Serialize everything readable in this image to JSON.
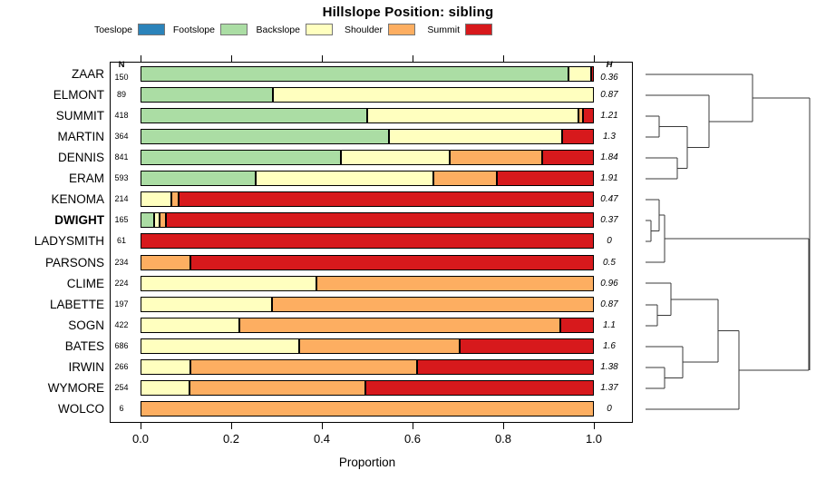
{
  "title": "Hillslope Position: sibling",
  "legend": {
    "items": [
      {
        "label": "Toeslope",
        "color": "#2B83BA"
      },
      {
        "label": "Footslope",
        "color": "#ABDDA4"
      },
      {
        "label": "Backslope",
        "color": "#FFFFBF"
      },
      {
        "label": "Shoulder",
        "color": "#FDAE61"
      },
      {
        "label": "Summit",
        "color": "#D7191C"
      }
    ]
  },
  "columns": {
    "n_header": "N",
    "h_header": "H"
  },
  "chart_data": {
    "type": "bar",
    "stacked": true,
    "orientation": "horizontal",
    "title": "Hillslope Position: sibling",
    "xlabel": "Proportion",
    "xlim": [
      0,
      1
    ],
    "x_ticks": [
      "0.0",
      "0.2",
      "0.4",
      "0.6",
      "0.8",
      "1.0"
    ],
    "x_tick_values": [
      0.0,
      0.2,
      0.4,
      0.6,
      0.8,
      1.0
    ],
    "grid": false,
    "legend_position": "top",
    "series_classes": [
      "Toeslope",
      "Footslope",
      "Backslope",
      "Shoulder",
      "Summit"
    ],
    "colors": {
      "Toeslope": "#2B83BA",
      "Footslope": "#ABDDA4",
      "Backslope": "#FFFFBF",
      "Shoulder": "#FDAE61",
      "Summit": "#D7191C"
    },
    "rows": [
      {
        "label": "ZAAR",
        "bold": false,
        "n": 150,
        "h": "0.36",
        "segments": [
          {
            "class": "Footslope",
            "p": 0.943
          },
          {
            "class": "Backslope",
            "p": 0.05
          },
          {
            "class": "Summit",
            "p": 0.007
          }
        ]
      },
      {
        "label": "ELMONT",
        "bold": false,
        "n": 89,
        "h": "0.87",
        "segments": [
          {
            "class": "Footslope",
            "p": 0.291
          },
          {
            "class": "Backslope",
            "p": 0.709
          }
        ]
      },
      {
        "label": "SUMMIT",
        "bold": false,
        "n": 418,
        "h": "1.21",
        "segments": [
          {
            "class": "Footslope",
            "p": 0.5
          },
          {
            "class": "Backslope",
            "p": 0.466
          },
          {
            "class": "Shoulder",
            "p": 0.01
          },
          {
            "class": "Summit",
            "p": 0.024
          }
        ]
      },
      {
        "label": "MARTIN",
        "bold": false,
        "n": 364,
        "h": "1.3",
        "segments": [
          {
            "class": "Footslope",
            "p": 0.548
          },
          {
            "class": "Backslope",
            "p": 0.382
          },
          {
            "class": "Summit",
            "p": 0.07
          }
        ]
      },
      {
        "label": "DENNIS",
        "bold": false,
        "n": 841,
        "h": "1.84",
        "segments": [
          {
            "class": "Footslope",
            "p": 0.442
          },
          {
            "class": "Backslope",
            "p": 0.24
          },
          {
            "class": "Shoulder",
            "p": 0.204
          },
          {
            "class": "Summit",
            "p": 0.114
          }
        ]
      },
      {
        "label": "ERAM",
        "bold": false,
        "n": 593,
        "h": "1.91",
        "segments": [
          {
            "class": "Footslope",
            "p": 0.253
          },
          {
            "class": "Backslope",
            "p": 0.393
          },
          {
            "class": "Shoulder",
            "p": 0.14
          },
          {
            "class": "Summit",
            "p": 0.214
          }
        ]
      },
      {
        "label": "KENOMA",
        "bold": false,
        "n": 214,
        "h": "0.47",
        "segments": [
          {
            "class": "Backslope",
            "p": 0.068
          },
          {
            "class": "Shoulder",
            "p": 0.016
          },
          {
            "class": "Summit",
            "p": 0.916
          }
        ]
      },
      {
        "label": "DWIGHT",
        "bold": true,
        "n": 165,
        "h": "0.37",
        "segments": [
          {
            "class": "Footslope",
            "p": 0.03
          },
          {
            "class": "Backslope",
            "p": 0.012
          },
          {
            "class": "Shoulder",
            "p": 0.015
          },
          {
            "class": "Summit",
            "p": 0.943
          }
        ]
      },
      {
        "label": "LADYSMITH",
        "bold": false,
        "n": 61,
        "h": "0",
        "segments": [
          {
            "class": "Summit",
            "p": 1.0
          }
        ]
      },
      {
        "label": "PARSONS",
        "bold": false,
        "n": 234,
        "h": "0.5",
        "segments": [
          {
            "class": "Shoulder",
            "p": 0.11
          },
          {
            "class": "Summit",
            "p": 0.89
          }
        ]
      },
      {
        "label": "CLIME",
        "bold": false,
        "n": 224,
        "h": "0.96",
        "segments": [
          {
            "class": "Backslope",
            "p": 0.388
          },
          {
            "class": "Shoulder",
            "p": 0.612
          }
        ]
      },
      {
        "label": "LABETTE",
        "bold": false,
        "n": 197,
        "h": "0.87",
        "segments": [
          {
            "class": "Backslope",
            "p": 0.29
          },
          {
            "class": "Shoulder",
            "p": 0.71
          }
        ]
      },
      {
        "label": "SOGN",
        "bold": false,
        "n": 422,
        "h": "1.1",
        "segments": [
          {
            "class": "Backslope",
            "p": 0.217
          },
          {
            "class": "Shoulder",
            "p": 0.71
          },
          {
            "class": "Summit",
            "p": 0.073
          }
        ]
      },
      {
        "label": "BATES",
        "bold": false,
        "n": 686,
        "h": "1.6",
        "segments": [
          {
            "class": "Backslope",
            "p": 0.349
          },
          {
            "class": "Shoulder",
            "p": 0.354
          },
          {
            "class": "Summit",
            "p": 0.297
          }
        ]
      },
      {
        "label": "IRWIN",
        "bold": false,
        "n": 266,
        "h": "1.38",
        "segments": [
          {
            "class": "Backslope",
            "p": 0.11
          },
          {
            "class": "Shoulder",
            "p": 0.499
          },
          {
            "class": "Summit",
            "p": 0.391
          }
        ]
      },
      {
        "label": "WYMORE",
        "bold": false,
        "n": 254,
        "h": "1.37",
        "segments": [
          {
            "class": "Backslope",
            "p": 0.107
          },
          {
            "class": "Shoulder",
            "p": 0.388
          },
          {
            "class": "Summit",
            "p": 0.505
          }
        ]
      },
      {
        "label": "WOLCO",
        "bold": false,
        "n": 6,
        "h": "0",
        "segments": [
          {
            "class": "Shoulder",
            "p": 1.0
          }
        ]
      }
    ],
    "dendrogram": {
      "leaf_x": 712,
      "segments": [
        [
          712,
          82,
          830,
          82
        ],
        [
          712,
          105,
          782,
          105
        ],
        [
          712,
          128,
          727,
          128
        ],
        [
          712,
          151,
          727,
          151
        ],
        [
          712,
          174,
          747,
          174
        ],
        [
          712,
          197,
          747,
          197
        ],
        [
          712,
          220,
          727,
          220
        ],
        [
          712,
          243,
          718,
          243
        ],
        [
          712,
          266,
          718,
          266
        ],
        [
          712,
          289,
          733,
          289
        ],
        [
          712,
          312,
          740,
          312
        ],
        [
          712,
          336,
          725,
          336
        ],
        [
          712,
          359,
          725,
          359
        ],
        [
          712,
          382,
          753,
          382
        ],
        [
          712,
          405,
          733,
          405
        ],
        [
          712,
          428,
          733,
          428
        ],
        [
          712,
          451,
          815,
          451
        ],
        [
          727,
          128,
          727,
          151
        ],
        [
          727,
          139.5,
          758,
          139.5
        ],
        [
          747,
          174,
          747,
          197
        ],
        [
          747,
          185.5,
          758,
          185.5
        ],
        [
          758,
          139.5,
          758,
          185.5
        ],
        [
          758,
          162.5,
          782,
          162.5
        ],
        [
          782,
          105,
          782,
          162.5
        ],
        [
          782,
          134,
          830,
          134
        ],
        [
          830,
          82,
          830,
          134
        ],
        [
          830,
          108,
          893,
          108
        ],
        [
          718,
          243,
          718,
          266
        ],
        [
          718,
          254.5,
          727,
          254.5
        ],
        [
          727,
          220,
          727,
          254.5
        ],
        [
          727,
          237,
          733,
          237
        ],
        [
          733,
          237,
          733,
          289
        ],
        [
          733,
          263,
          892,
          263
        ],
        [
          725,
          336,
          725,
          359
        ],
        [
          725,
          347.5,
          740,
          347.5
        ],
        [
          740,
          312,
          740,
          347.5
        ],
        [
          740,
          330,
          792,
          330
        ],
        [
          733,
          405,
          733,
          428
        ],
        [
          733,
          416.5,
          753,
          416.5
        ],
        [
          753,
          382,
          753,
          416.5
        ],
        [
          753,
          399,
          792,
          399
        ],
        [
          792,
          330,
          792,
          399
        ],
        [
          792,
          364.5,
          815,
          364.5
        ],
        [
          815,
          364.5,
          815,
          451
        ],
        [
          815,
          408,
          892,
          408
        ],
        [
          892,
          263,
          892,
          408
        ],
        [
          893,
          108,
          893,
          408
        ]
      ]
    }
  },
  "axis": {
    "xlabel": "Proportion"
  }
}
